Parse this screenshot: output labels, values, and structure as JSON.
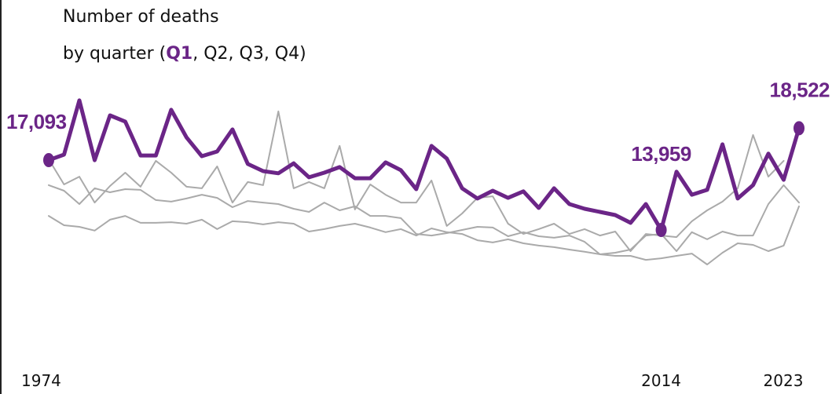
{
  "chart_data": {
    "type": "line",
    "title": "Number of deaths",
    "subtitle": [
      "by quarter (",
      "Q1",
      ", Q2, Q3, Q4)"
    ],
    "x": [
      1974,
      1975,
      1976,
      1977,
      1978,
      1979,
      1980,
      1981,
      1982,
      1983,
      1984,
      1985,
      1986,
      1987,
      1988,
      1989,
      1990,
      1991,
      1992,
      1993,
      1994,
      1995,
      1996,
      1997,
      1998,
      1999,
      2000,
      2001,
      2002,
      2003,
      2004,
      2005,
      2006,
      2007,
      2008,
      2009,
      2010,
      2011,
      2012,
      2013,
      2014,
      2015,
      2016,
      2017,
      2018,
      2019,
      2020,
      2021,
      2022,
      2023
    ],
    "xlim": [
      1974,
      2023
    ],
    "xticks": [
      1974,
      2014,
      2023
    ],
    "ylim": [
      10000,
      20000
    ],
    "series": [
      {
        "name": "Q1",
        "color": "#6b2587",
        "highlight": true,
        "values": [
          17093,
          17340,
          19770,
          17090,
          19100,
          18820,
          17300,
          17300,
          19350,
          18110,
          17270,
          17480,
          18470,
          16920,
          16600,
          16500,
          16950,
          16320,
          16530,
          16780,
          16280,
          16280,
          16990,
          16640,
          15790,
          17730,
          17160,
          15830,
          15370,
          15720,
          15400,
          15690,
          14950,
          15830,
          15120,
          14910,
          14770,
          14630,
          14280,
          15120,
          13959,
          16570,
          15540,
          15760,
          17800,
          15370,
          15970,
          17380,
          16210,
          18522
        ],
        "value_labels": [
          "17,093",
          null,
          null,
          null,
          null,
          null,
          null,
          null,
          null,
          null,
          null,
          null,
          null,
          null,
          null,
          null,
          null,
          null,
          null,
          null,
          null,
          null,
          null,
          null,
          null,
          null,
          null,
          null,
          null,
          null,
          "",
          null,
          null,
          null,
          null,
          null,
          null,
          null,
          null,
          null,
          "13,959",
          null,
          null,
          null,
          null,
          null,
          null,
          null,
          null,
          "18,522"
        ]
      },
      {
        "name": "Q2",
        "color": "#aaaaaa",
        "values": [
          14590,
          14170,
          14100,
          13930,
          14420,
          14590,
          14280,
          14280,
          14310,
          14240,
          14420,
          14000,
          14350,
          14310,
          14210,
          14310,
          14240,
          13890,
          14000,
          14140,
          14240,
          14070,
          13860,
          14000,
          13710,
          14030,
          13860,
          13780,
          13500,
          13400,
          13540,
          13360,
          13260,
          13190,
          13080,
          12980,
          12870,
          12800,
          12800,
          12620,
          12690,
          12800,
          12900,
          12410,
          12940,
          13360,
          13290,
          13010,
          13260,
          15020
        ]
      },
      {
        "name": "Q3",
        "color": "#aaaaaa",
        "values": [
          15970,
          15720,
          15120,
          15830,
          15650,
          15790,
          15760,
          15300,
          15230,
          15370,
          15540,
          15400,
          14980,
          15260,
          15190,
          15120,
          14910,
          14770,
          15190,
          14840,
          15020,
          14590,
          14590,
          14490,
          13780,
          13710,
          13820,
          13960,
          14100,
          14070,
          13680,
          13860,
          13680,
          13610,
          13710,
          13430,
          12870,
          12940,
          13080,
          13710,
          13780,
          13010,
          13860,
          13540,
          13890,
          13710,
          13710,
          15120,
          15970,
          15190
        ]
      },
      {
        "name": "Q4",
        "color": "#aaaaaa",
        "values": [
          17130,
          16000,
          16350,
          15190,
          15930,
          16530,
          15900,
          17060,
          16530,
          15900,
          15830,
          16810,
          15190,
          16110,
          15970,
          19280,
          15830,
          16110,
          15830,
          17730,
          14880,
          16000,
          15540,
          15190,
          15190,
          16180,
          14140,
          14700,
          15400,
          15470,
          14240,
          13780,
          14000,
          14240,
          13780,
          14000,
          13710,
          13890,
          13010,
          13780,
          13710,
          13640,
          14350,
          14840,
          15230,
          15830,
          18220,
          16350,
          17060,
          null
        ]
      }
    ]
  }
}
